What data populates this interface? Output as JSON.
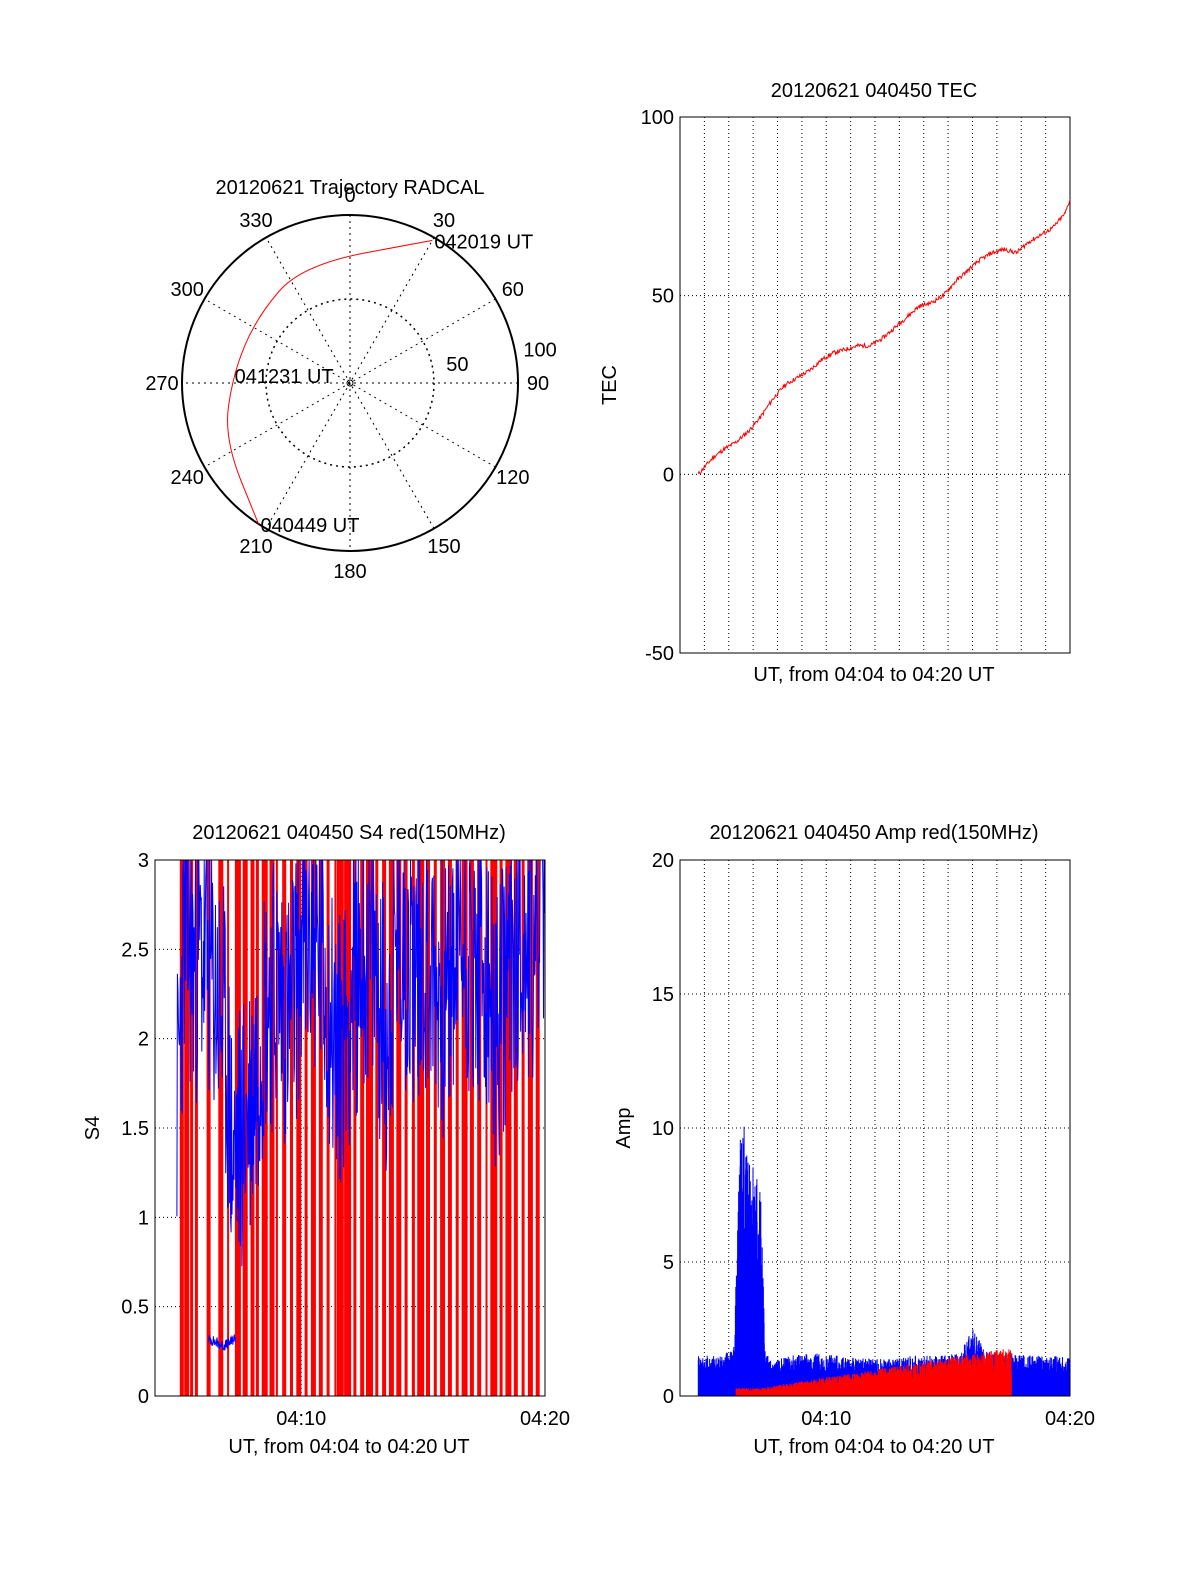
{
  "chart_data": [
    {
      "type": "polar",
      "title": "20120621 Trajectory RADCAL",
      "azimuth_labels": [
        "0",
        "30",
        "60",
        "90",
        "120",
        "150",
        "180",
        "210",
        "240",
        "270",
        "300",
        "330"
      ],
      "radial_labels": [
        "50",
        "100"
      ],
      "trajectory": {
        "color": "#ff0000",
        "points": [
          {
            "az": 30,
            "r": 98
          },
          {
            "az": 338,
            "r": 76
          },
          {
            "az": 305,
            "r": 68
          },
          {
            "az": 274,
            "r": 70
          },
          {
            "az": 246,
            "r": 82
          },
          {
            "az": 213,
            "r": 100
          }
        ]
      },
      "annotations": [
        {
          "text": "042019 UT",
          "az": 30,
          "r": 98
        },
        {
          "text": "041231 UT",
          "az": 274,
          "r": 70
        },
        {
          "text": "040449 UT",
          "az": 213,
          "r": 100
        }
      ]
    },
    {
      "type": "line",
      "title": "20120621 040450 TEC",
      "xlabel": "UT, from 04:04 to 04:20 UT",
      "ylabel": "TEC",
      "xlim": [
        4.0,
        20.0
      ],
      "ylim": [
        -50,
        100
      ],
      "yticks": [
        "-50",
        "0",
        "50",
        "100"
      ],
      "xgrid_step": 1,
      "grid": true,
      "series": [
        {
          "color": "#ff0000",
          "x": [
            4.75,
            5.0,
            5.4,
            5.8,
            6.3,
            6.8,
            7.3,
            7.8,
            8.3,
            8.8,
            9.3,
            9.8,
            10.3,
            10.8,
            11.3,
            11.8,
            12.3,
            12.8,
            13.3,
            13.8,
            14.3,
            14.8,
            15.3,
            15.8,
            16.3,
            16.8,
            17.3,
            17.8,
            18.3,
            18.8,
            19.3,
            19.8,
            20.0
          ],
          "y": [
            0,
            2,
            5,
            7,
            9,
            12,
            16,
            21,
            25,
            27,
            29,
            32,
            34,
            35,
            36,
            36,
            38,
            41,
            44,
            47,
            48,
            50,
            54,
            57,
            60,
            62,
            63,
            62,
            65,
            67,
            69,
            73,
            77
          ]
        }
      ]
    },
    {
      "type": "line",
      "title": "20120621 040450 S4 red(150MHz)",
      "xlabel": "UT, from 04:04 to 04:20 UT",
      "ylabel": "S4",
      "xlim": [
        4.0,
        20.0
      ],
      "ylim": [
        0,
        3
      ],
      "yticks": [
        "0",
        "0.5",
        "1",
        "1.5",
        "2",
        "2.5",
        "3"
      ],
      "xticks": [
        {
          "value": 10,
          "label": "04:10"
        },
        {
          "value": 20,
          "label": "04:20"
        }
      ],
      "grid": true,
      "series": [
        {
          "color": "#0000ff",
          "x": [
            4.9,
            5.2,
            5.6,
            6.0,
            6.4,
            6.8,
            7.2,
            7.6,
            8.0,
            8.5,
            9.0,
            9.5,
            10.0,
            10.5,
            11.0,
            11.5,
            12.0,
            12.5,
            13.0,
            13.5,
            14.0,
            14.5,
            15.0,
            15.5,
            16.0,
            16.5,
            17.0,
            17.5,
            18.0,
            18.5,
            19.0,
            19.5,
            20.0
          ],
          "y": [
            1.6,
            2.6,
            2.4,
            2.5,
            2.3,
            2.1,
            1.3,
            1.5,
            1.7,
            2.2,
            2.3,
            2.1,
            2.5,
            2.6,
            2.3,
            1.9,
            2.2,
            2.5,
            2.4,
            2.0,
            2.6,
            2.4,
            2.5,
            2.3,
            2.2,
            2.6,
            2.4,
            2.3,
            2.0,
            2.4,
            2.6,
            2.5,
            2.8
          ]
        },
        {
          "color": "#0000ff",
          "x": [
            6.2,
            6.5,
            6.8,
            7.1,
            7.3
          ],
          "y": [
            0.32,
            0.3,
            0.28,
            0.3,
            0.33
          ]
        }
      ],
      "spikes": {
        "color": "#ff0000",
        "x": [
          5.1,
          5.3,
          5.5,
          5.7,
          6.2,
          6.7,
          7.0,
          7.4,
          7.7,
          8.0,
          8.2,
          8.5,
          8.8,
          9.0,
          9.3,
          9.6,
          9.9,
          10.2,
          10.5,
          10.8,
          11.1,
          11.4,
          11.6,
          11.9,
          12.2,
          12.5,
          12.8,
          13.1,
          13.4,
          13.7,
          14.0,
          14.3,
          14.6,
          14.9,
          15.2,
          15.5,
          15.8,
          16.1,
          16.4,
          16.7,
          17.0,
          17.3,
          17.6,
          17.9,
          18.2,
          18.5,
          18.8,
          19.1,
          19.4,
          19.7
        ]
      }
    },
    {
      "type": "line",
      "title": "20120621 040450 Amp red(150MHz)",
      "xlabel": "UT, from 04:04 to 04:20 UT",
      "ylabel": "Amp",
      "xlim": [
        4.0,
        20.0
      ],
      "ylim": [
        0,
        20
      ],
      "yticks": [
        "0",
        "5",
        "10",
        "15",
        "20"
      ],
      "xticks": [
        {
          "value": 10,
          "label": "04:10"
        },
        {
          "value": 20,
          "label": "04:20"
        }
      ],
      "xgrid_step": 1,
      "grid": true,
      "series": [
        {
          "color": "#0000ff",
          "x": [
            4.75,
            5.5,
            6.2,
            6.5,
            6.9,
            7.3,
            7.5,
            7.8,
            8.5,
            9.5,
            10.5,
            11.5,
            12.5,
            13.5,
            14.5,
            15.5,
            16.0,
            16.5,
            17.5,
            18.5,
            19.5,
            20.0
          ],
          "y": [
            1.5,
            1.5,
            1.8,
            10.5,
            9.5,
            8.0,
            1.6,
            1.3,
            1.5,
            1.6,
            1.5,
            1.4,
            1.4,
            1.5,
            1.5,
            1.6,
            2.6,
            1.7,
            1.6,
            1.5,
            1.5,
            1.4
          ]
        },
        {
          "color": "#ff0000",
          "x": [
            6.3,
            7.3,
            17.5,
            17.6
          ],
          "y": [
            0.3,
            0.3,
            1.8,
            1.8
          ]
        }
      ]
    }
  ]
}
